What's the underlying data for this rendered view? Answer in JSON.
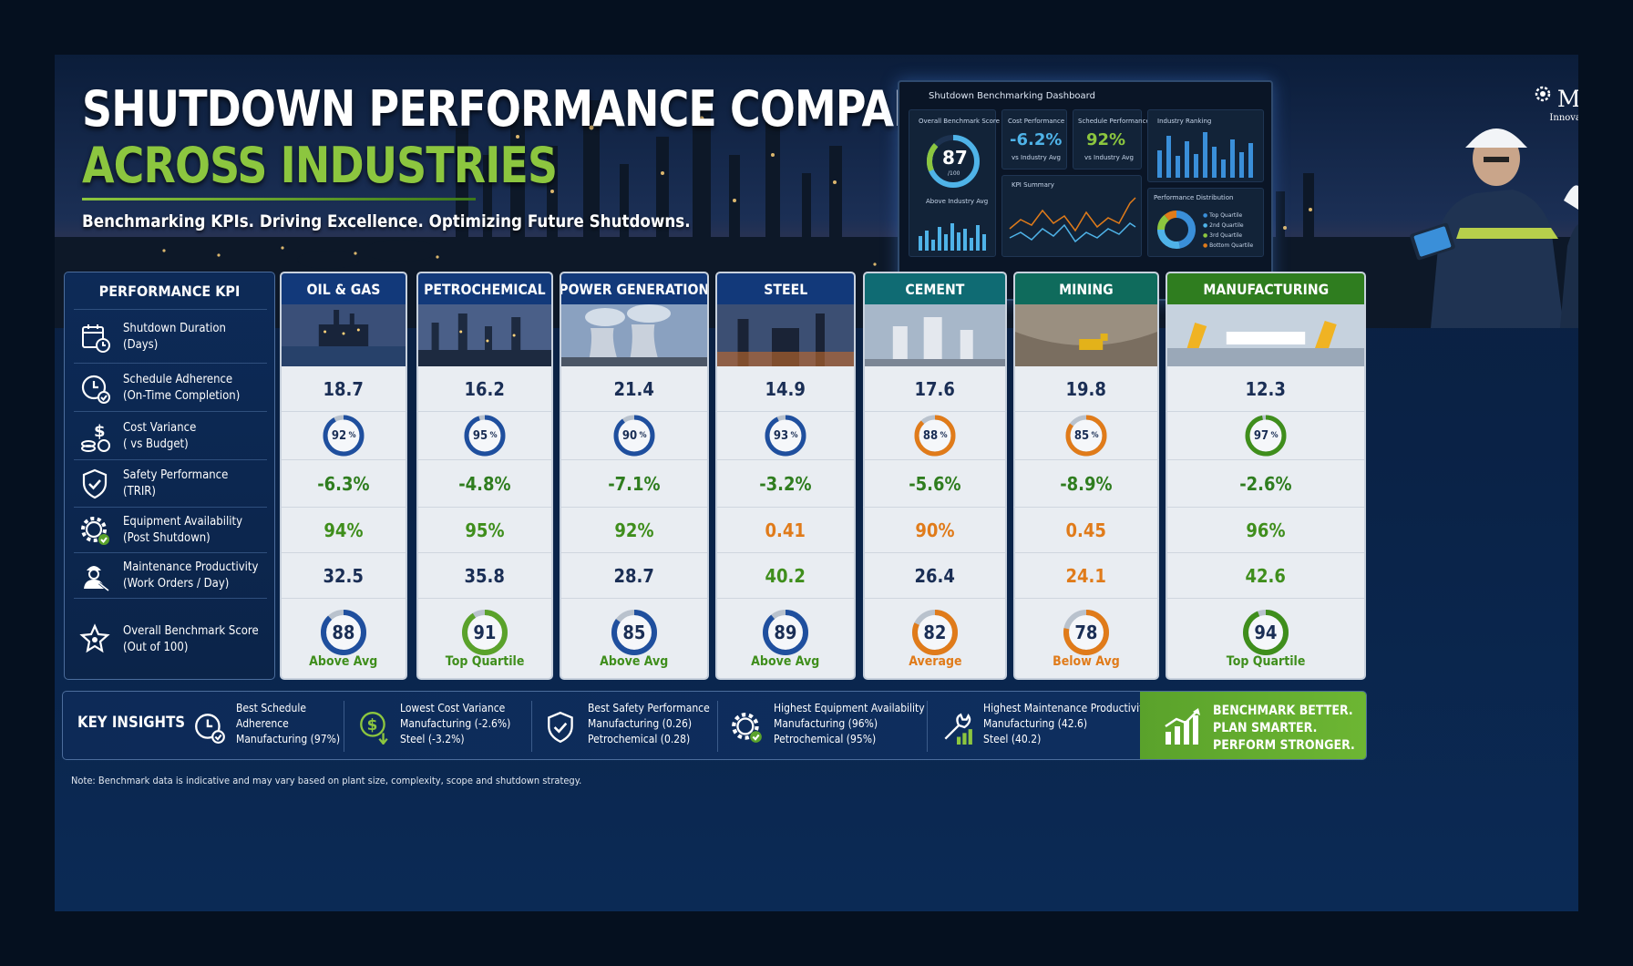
{
  "header": {
    "title_line1": "SHUTDOWN PERFORMANCE COMPARISON",
    "title_line2": "ACROSS INDUSTRIES",
    "subtitle": "Benchmarking KPIs. Driving Excellence. Optimizing Future Shutdowns."
  },
  "logo": {
    "name": "MaintWiz",
    "tagline": "Innovating Industrial AI"
  },
  "dashboard": {
    "title": "Shutdown Benchmarking Dashboard",
    "overall_label": "Overall Benchmark Score",
    "overall_value": "87",
    "overall_denominator": "/100",
    "overall_caption": "Above Industry Avg",
    "cost_label": "Cost Performance",
    "cost_value": "-6.2%",
    "cost_caption": "vs Industry Avg",
    "schedule_label": "Schedule Performance",
    "schedule_value": "92%",
    "schedule_caption": "vs Industry Avg",
    "ranking_label": "Industry Ranking",
    "kpi_summary_label": "KPI Summary",
    "distribution_label": "Performance Distribution",
    "legend": [
      "Top Quartile",
      "2nd Quartile",
      "3rd Quartile",
      "Bottom Quartile"
    ]
  },
  "kpi_panel": {
    "header": "PERFORMANCE KPI",
    "rows": [
      {
        "line1": "Shutdown Duration",
        "line2": "(Days)",
        "icon": "calendar-clock-icon"
      },
      {
        "line1": "Schedule Adherence",
        "line2": "(On-Time Completion)",
        "icon": "clock-check-icon"
      },
      {
        "line1": "Cost Variance",
        "line2": "( vs Budget)",
        "icon": "dollar-coins-icon"
      },
      {
        "line1": "Safety Performance",
        "line2": "(TRIR)",
        "icon": "shield-check-icon"
      },
      {
        "line1": "Equipment Availability",
        "line2": "(Post Shutdown)",
        "icon": "gear-check-icon"
      },
      {
        "line1": "Maintenance Productivity",
        "line2": "(Work Orders / Day)",
        "icon": "worker-wrench-icon"
      },
      {
        "line1": "Overall Benchmark Score",
        "line2": "(Out of 100)",
        "icon": "star-badge-icon"
      }
    ]
  },
  "industries": [
    {
      "name": "OIL & GAS",
      "header_color": "#12397a",
      "duration": "18.7",
      "schedule": "92",
      "schedule_color": "#1f4f9e",
      "cost": "-6.3%",
      "cost_color": "#2f7d1f",
      "equipment": "94%",
      "equipment_color": "#3f8e1c",
      "productivity": "32.5",
      "productivity_color": "#1a2e55",
      "score": "88",
      "score_color": "#1f4f9e",
      "verdict": "Above Avg",
      "verdict_color": "#3f8e1c"
    },
    {
      "name": "PETROCHEMICAL",
      "header_color": "#12397a",
      "duration": "16.2",
      "schedule": "95",
      "schedule_color": "#1f4f9e",
      "cost": "-4.8%",
      "cost_color": "#2f7d1f",
      "equipment": "95%",
      "equipment_color": "#3f8e1c",
      "productivity": "35.8",
      "productivity_color": "#1a2e55",
      "score": "91",
      "score_color": "#5aa22b",
      "verdict": "Top Quartile",
      "verdict_color": "#3f8e1c"
    },
    {
      "name": "POWER GENERATION",
      "header_color": "#12397a",
      "duration": "21.4",
      "schedule": "90",
      "schedule_color": "#1f4f9e",
      "cost": "-7.1%",
      "cost_color": "#2f7d1f",
      "equipment": "92%",
      "equipment_color": "#3f8e1c",
      "productivity": "28.7",
      "productivity_color": "#1a2e55",
      "score": "85",
      "score_color": "#1f4f9e",
      "verdict": "Above Avg",
      "verdict_color": "#3f8e1c"
    },
    {
      "name": "STEEL",
      "header_color": "#12397a",
      "duration": "14.9",
      "schedule": "93",
      "schedule_color": "#1f4f9e",
      "cost": "-3.2%",
      "cost_color": "#2f7d1f",
      "equipment": "0.41",
      "equipment_color": "#e07b1a",
      "productivity": "40.2",
      "productivity_color": "#3f8e1c",
      "score": "89",
      "score_color": "#1f4f9e",
      "verdict": "Above Avg",
      "verdict_color": "#3f8e1c"
    },
    {
      "name": "CEMENT",
      "header_color": "#0f6b73",
      "duration": "17.6",
      "schedule": "88",
      "schedule_color": "#e07b1a",
      "cost": "-5.6%",
      "cost_color": "#2f7d1f",
      "equipment": "90%",
      "equipment_color": "#e07b1a",
      "productivity": "26.4",
      "productivity_color": "#1a2e55",
      "score": "82",
      "score_color": "#e07b1a",
      "verdict": "Average",
      "verdict_color": "#e07b1a"
    },
    {
      "name": "MINING",
      "header_color": "#0f6b5c",
      "duration": "19.8",
      "schedule": "85",
      "schedule_color": "#e07b1a",
      "cost": "-8.9%",
      "cost_color": "#2f7d1f",
      "equipment": "0.45",
      "equipment_color": "#e07b1a",
      "productivity": "24.1",
      "productivity_color": "#e07b1a",
      "score": "78",
      "score_color": "#e07b1a",
      "verdict": "Below Avg",
      "verdict_color": "#e07b1a"
    },
    {
      "name": "MANUFACTURING",
      "header_color": "#2f7d1f",
      "duration": "12.3",
      "schedule": "97",
      "schedule_color": "#3f8e1c",
      "cost": "-2.6%",
      "cost_color": "#2f7d1f",
      "equipment": "96%",
      "equipment_color": "#3f8e1c",
      "productivity": "42.6",
      "productivity_color": "#3f8e1c",
      "score": "94",
      "score_color": "#3f8e1c",
      "verdict": "Top Quartile",
      "verdict_color": "#3f8e1c"
    }
  ],
  "insights": {
    "title": "KEY INSIGHTS",
    "items": [
      {
        "lines": [
          "Best Schedule",
          "Adherence",
          "Manufacturing (97%)"
        ],
        "icon": "clock-check-icon"
      },
      {
        "lines": [
          "Lowest Cost Variance",
          "Manufacturing (-2.6%)",
          "Steel (-3.2%)"
        ],
        "icon": "dollar-down-icon"
      },
      {
        "lines": [
          "Best Safety Performance",
          "Manufacturing (0.26)",
          "Petrochemical (0.28)"
        ],
        "icon": "shield-check-icon"
      },
      {
        "lines": [
          "Highest Equipment Availability",
          "Manufacturing (96%)",
          "Petrochemical (95%)"
        ],
        "icon": "gear-check-icon"
      },
      {
        "lines": [
          "Highest Maintenance Productivity",
          "Manufacturing (42.6)",
          "Steel (40.2)"
        ],
        "icon": "wrench-bars-icon"
      }
    ],
    "cta": [
      "BENCHMARK BETTER.",
      "PLAN SMARTER.",
      "PERFORM STRONGER."
    ]
  },
  "note": "Note: Benchmark data is indicative and may vary based on plant size, complexity, scope and shutdown strategy."
}
